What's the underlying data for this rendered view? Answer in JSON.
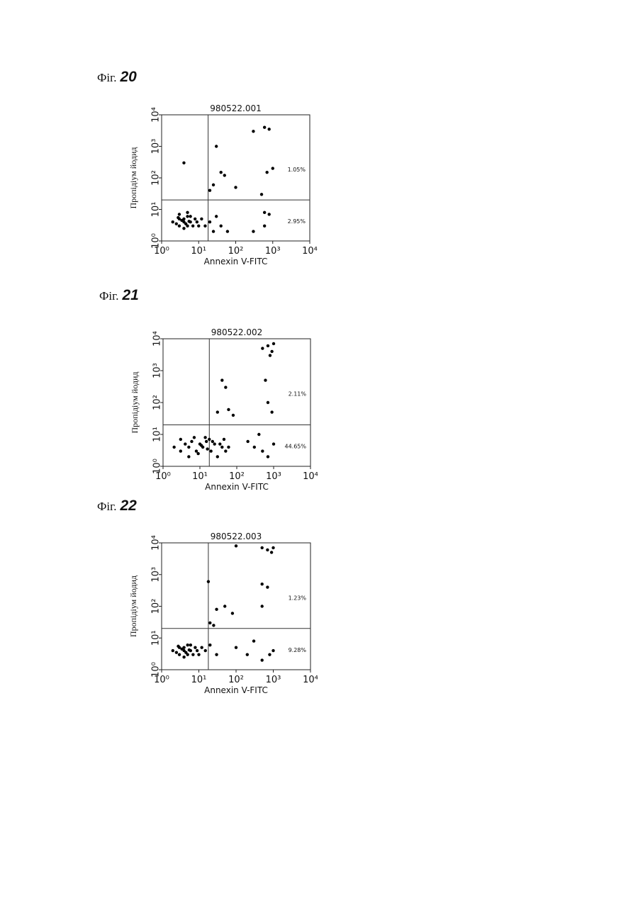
{
  "chart_data": [
    {
      "type": "scatter",
      "figure_prefix": "Фіг.",
      "figure_number": "20",
      "title": "980522.001",
      "xlabel": "Annexin V-FITC",
      "ylabel": "Пропідіум йодид",
      "xscale": "log",
      "yscale": "log",
      "color": "#000000",
      "xlim": [
        1,
        10000
      ],
      "ylim": [
        1,
        10000
      ],
      "xticks": [
        {
          "value": 1,
          "label": "10⁰"
        },
        {
          "value": 10,
          "label": "10¹"
        },
        {
          "value": 100,
          "label": "10²"
        },
        {
          "value": 1000,
          "label": "10³"
        },
        {
          "value": 10000,
          "label": "10⁴"
        }
      ],
      "yticks": [
        {
          "value": 1,
          "label": "10⁰"
        },
        {
          "value": 10,
          "label": "10¹"
        },
        {
          "value": 100,
          "label": "10²"
        },
        {
          "value": 1000,
          "label": "10³"
        },
        {
          "value": 10000,
          "label": "10⁴"
        }
      ],
      "gates": {
        "x": 18,
        "y": 20
      },
      "quadrant_labels": {
        "upper_right": "1.05%",
        "lower_right": "2.95%"
      },
      "x": [
        3,
        4,
        5,
        4,
        6,
        3,
        5,
        2.5,
        7,
        8,
        4,
        6,
        2,
        9,
        10,
        12,
        3,
        5,
        15,
        20,
        25,
        30,
        40,
        60,
        300,
        600,
        800,
        25,
        40,
        50,
        20,
        100,
        4,
        30,
        300,
        600,
        800,
        1000,
        700,
        500,
        600,
        3.5,
        4.5,
        5.5,
        2.8
      ],
      "y": [
        3,
        4,
        3,
        5,
        4,
        5,
        6,
        3.5,
        3,
        5,
        2.5,
        6,
        4,
        4,
        3,
        5,
        7,
        8,
        3,
        4,
        2,
        6,
        3,
        2,
        2,
        3,
        7,
        60,
        150,
        120,
        40,
        50,
        300,
        1000,
        3000,
        4000,
        3500,
        200,
        150,
        30,
        8,
        4.5,
        3.5,
        4.2,
        5.5
      ]
    },
    {
      "type": "scatter",
      "figure_prefix": "Фіг.",
      "figure_number": "21",
      "title": "980522.002",
      "xlabel": "Annexin V-FITC",
      "ylabel": "Пропідіум йодид",
      "xscale": "log",
      "yscale": "log",
      "color": "#000000",
      "xlim": [
        1,
        10000
      ],
      "ylim": [
        1,
        10000
      ],
      "xticks": [
        {
          "value": 1,
          "label": "10⁰"
        },
        {
          "value": 10,
          "label": "10¹"
        },
        {
          "value": 100,
          "label": "10²"
        },
        {
          "value": 1000,
          "label": "10³"
        },
        {
          "value": 10000,
          "label": "10⁴"
        }
      ],
      "yticks": [
        {
          "value": 1,
          "label": "10⁰"
        },
        {
          "value": 10,
          "label": "10¹"
        },
        {
          "value": 100,
          "label": "10²"
        },
        {
          "value": 1000,
          "label": "10³"
        },
        {
          "value": 10000,
          "label": "10⁴"
        }
      ],
      "gates": {
        "x": 18,
        "y": 20
      },
      "quadrant_labels": {
        "upper_right": "2.11%",
        "lower_right": "44.65%"
      },
      "x": [
        2,
        3,
        4,
        5,
        6,
        8,
        10,
        12,
        15,
        20,
        25,
        30,
        40,
        50,
        3,
        5,
        7,
        9,
        14,
        18,
        22,
        35,
        45,
        60,
        500,
        700,
        900,
        1000,
        800,
        600,
        700,
        900,
        40,
        50,
        60,
        30,
        80,
        200,
        300,
        500,
        700,
        1000,
        400,
        11,
        16
      ],
      "y": [
        4,
        3,
        5,
        4,
        6,
        3,
        5,
        4,
        6,
        3,
        5,
        2,
        4,
        3,
        7,
        2,
        8,
        2.5,
        8,
        7,
        6,
        5,
        7,
        4,
        5000,
        6000,
        4000,
        7000,
        3000,
        500,
        100,
        50,
        500,
        300,
        60,
        50,
        40,
        6,
        4,
        3,
        2,
        5,
        10,
        4.5,
        3.5
      ]
    },
    {
      "type": "scatter",
      "figure_prefix": "Фіг.",
      "figure_number": "22",
      "title": "980522.003",
      "xlabel": "Annexin V-FITC",
      "ylabel": "Пропідіум йодид",
      "xscale": "log",
      "yscale": "log",
      "color": "#000000",
      "xlim": [
        1,
        10000
      ],
      "ylim": [
        1,
        10000
      ],
      "xticks": [
        {
          "value": 1,
          "label": "10⁰"
        },
        {
          "value": 10,
          "label": "10¹"
        },
        {
          "value": 100,
          "label": "10²"
        },
        {
          "value": 1000,
          "label": "10³"
        },
        {
          "value": 10000,
          "label": "10⁴"
        }
      ],
      "yticks": [
        {
          "value": 1,
          "label": "10⁰"
        },
        {
          "value": 10,
          "label": "10¹"
        },
        {
          "value": 100,
          "label": "10²"
        },
        {
          "value": 1000,
          "label": "10³"
        },
        {
          "value": 10000,
          "label": "10⁴"
        }
      ],
      "gates": {
        "x": 18,
        "y": 20
      },
      "quadrant_labels": {
        "upper_right": "1.23%",
        "lower_right": "9.28%"
      },
      "x": [
        3,
        4,
        5,
        4,
        6,
        3,
        5,
        2.5,
        7,
        8,
        4,
        6,
        2,
        9,
        10,
        12,
        3.5,
        4.5,
        15,
        100,
        500,
        700,
        900,
        1000,
        500,
        700,
        500,
        18,
        30,
        50,
        80,
        20,
        25,
        100,
        200,
        500,
        800,
        1000,
        300,
        5.5,
        2.8,
        20,
        30
      ],
      "y": [
        3,
        4,
        3,
        5,
        4,
        5,
        6,
        3.5,
        3,
        5,
        2.5,
        6,
        4,
        4,
        3,
        5,
        4.5,
        3.5,
        4,
        8000,
        7000,
        6000,
        5000,
        7000,
        500,
        400,
        100,
        600,
        80,
        100,
        60,
        30,
        25,
        5,
        3,
        2,
        3,
        4,
        8,
        4.2,
        5.5,
        6,
        3
      ]
    }
  ]
}
